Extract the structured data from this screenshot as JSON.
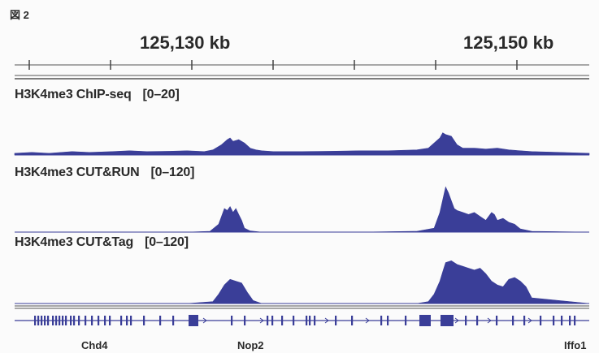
{
  "figure_label": "図 2",
  "chart_data": {
    "type": "area",
    "x_unit": "kb",
    "ruler_labels": [
      "125,130 kb",
      "125,150 kb"
    ],
    "tracks": [
      {
        "label": "H3K4me3 ChIP-seq",
        "range_text": "[0–20]",
        "ylim": [
          0,
          20
        ],
        "color": "#3a3e98",
        "x": [
          0,
          0.03,
          0.06,
          0.1,
          0.13,
          0.17,
          0.2,
          0.23,
          0.27,
          0.3,
          0.33,
          0.345,
          0.36,
          0.37,
          0.375,
          0.38,
          0.39,
          0.4,
          0.41,
          0.42,
          0.43,
          0.45,
          0.5,
          0.55,
          0.6,
          0.65,
          0.7,
          0.72,
          0.74,
          0.745,
          0.75,
          0.76,
          0.77,
          0.78,
          0.8,
          0.82,
          0.84,
          0.86,
          0.88,
          0.9,
          0.95,
          1.0
        ],
        "values": [
          1,
          1.5,
          1,
          2,
          1.5,
          2,
          2.5,
          2,
          2.2,
          2.5,
          2,
          3,
          6,
          9,
          10,
          8,
          9,
          7,
          4,
          3,
          2.5,
          2,
          2,
          2.2,
          2.5,
          2.5,
          3,
          4,
          10,
          13,
          12,
          11,
          6,
          4,
          4,
          3.5,
          4,
          3,
          2.5,
          2,
          1.5,
          1
        ]
      },
      {
        "label": "H3K4me3 CUT&RUN",
        "range_text": "[0–120]",
        "ylim": [
          0,
          120
        ],
        "color": "#3a3e98",
        "x": [
          0,
          0.1,
          0.2,
          0.3,
          0.34,
          0.355,
          0.365,
          0.37,
          0.375,
          0.38,
          0.385,
          0.39,
          0.395,
          0.4,
          0.41,
          0.43,
          0.5,
          0.6,
          0.7,
          0.73,
          0.74,
          0.75,
          0.755,
          0.76,
          0.765,
          0.77,
          0.78,
          0.79,
          0.8,
          0.81,
          0.82,
          0.83,
          0.835,
          0.84,
          0.85,
          0.86,
          0.87,
          0.88,
          0.9,
          1.0
        ],
        "values": [
          0,
          0,
          0,
          0,
          2,
          20,
          60,
          55,
          65,
          50,
          60,
          45,
          30,
          10,
          3,
          0,
          0,
          0,
          2,
          10,
          50,
          115,
          100,
          80,
          60,
          55,
          50,
          45,
          50,
          40,
          30,
          50,
          45,
          30,
          35,
          25,
          20,
          8,
          2,
          0
        ]
      },
      {
        "label": "H3K4me3 CUT&Tag",
        "range_text": "[0–120]",
        "ylim": [
          0,
          120
        ],
        "color": "#3a3e98",
        "x": [
          0,
          0.3,
          0.345,
          0.355,
          0.365,
          0.375,
          0.385,
          0.395,
          0.405,
          0.415,
          0.43,
          0.5,
          0.6,
          0.7,
          0.72,
          0.73,
          0.74,
          0.745,
          0.75,
          0.76,
          0.77,
          0.78,
          0.79,
          0.8,
          0.81,
          0.82,
          0.83,
          0.84,
          0.85,
          0.86,
          0.87,
          0.88,
          0.89,
          0.9,
          1.0
        ],
        "values": [
          0,
          0,
          5,
          25,
          50,
          65,
          60,
          55,
          30,
          8,
          0,
          0,
          0,
          0,
          5,
          25,
          60,
          85,
          110,
          115,
          105,
          100,
          95,
          90,
          95,
          80,
          60,
          50,
          45,
          65,
          70,
          60,
          45,
          15,
          0
        ]
      }
    ],
    "genes": [
      {
        "name": "Chd4"
      },
      {
        "name": "Nop2"
      },
      {
        "name": "Iffo1"
      }
    ]
  }
}
